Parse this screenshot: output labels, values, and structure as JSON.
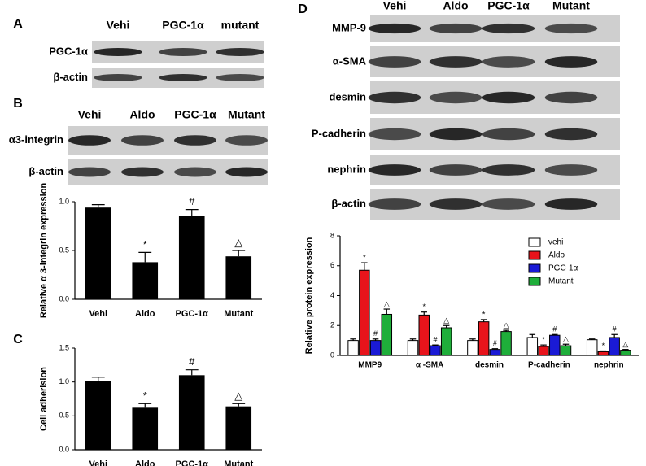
{
  "panels": {
    "A": {
      "label": "A",
      "lanes": [
        "Vehi",
        "PGC-1α",
        "mutant"
      ],
      "rows": [
        "PGC-1α",
        "β-actin"
      ]
    },
    "B": {
      "label": "B",
      "lanes": [
        "Vehi",
        "Aldo",
        "PGC-1α",
        "Mutant"
      ],
      "rows": [
        "α3-integrin",
        "β-actin"
      ]
    },
    "C": {
      "label": "C"
    },
    "D": {
      "label": "D",
      "lanes": [
        "Vehi",
        "Aldo",
        "PGC-1α",
        "Mutant"
      ],
      "rows": [
        "MMP-9",
        "α-SMA",
        "desmin",
        "P-cadherin",
        "nephrin",
        "β-actin"
      ]
    }
  },
  "chart_data": [
    {
      "type": "bar",
      "ylabel": "Relative α 3-integrin expression",
      "categories": [
        "Vehi",
        "Aldo",
        "PGC-1α",
        "Mutant"
      ],
      "values": [
        0.94,
        0.38,
        0.85,
        0.44
      ],
      "errors": [
        0.03,
        0.1,
        0.07,
        0.06
      ],
      "annotations": [
        null,
        "*",
        "#",
        "△"
      ],
      "color": "#000000",
      "ylim": [
        0,
        1.0
      ],
      "yticks": [
        {
          "value": 0,
          "label": "0.0"
        },
        {
          "value": 0.5,
          "label": "0.5"
        },
        {
          "value": 1.0,
          "label": "1.0"
        }
      ]
    },
    {
      "type": "bar",
      "ylabel": "Cell adherision",
      "categories": [
        "Vehi",
        "Aldo",
        "PGC-1α",
        "Mutant"
      ],
      "values": [
        1.02,
        0.62,
        1.1,
        0.64
      ],
      "errors": [
        0.05,
        0.06,
        0.08,
        0.04
      ],
      "annotations": [
        null,
        "*",
        "#",
        "△"
      ],
      "color": "#000000",
      "ylim": [
        0,
        1.5
      ],
      "yticks": [
        {
          "value": 0,
          "label": "0.0"
        },
        {
          "value": 0.5,
          "label": "0.5"
        },
        {
          "value": 1.0,
          "label": "1.0"
        },
        {
          "value": 1.5,
          "label": "1.5"
        }
      ]
    },
    {
      "type": "grouped-bar",
      "ylabel": "Relative protein expression",
      "categories": [
        "MMP9",
        "α -SMA",
        "desmin",
        "P-cadherin",
        "nephrin"
      ],
      "series": [
        {
          "name": "vehi",
          "color": "#ffffff",
          "values": [
            1.0,
            1.0,
            1.0,
            1.2,
            1.05
          ],
          "errors": [
            0.1,
            0.1,
            0.1,
            0.2,
            0.05
          ],
          "annotations": [
            null,
            null,
            null,
            null,
            null
          ]
        },
        {
          "name": "Aldo",
          "color": "#e8141b",
          "values": [
            5.7,
            2.7,
            2.25,
            0.6,
            0.25
          ],
          "errors": [
            0.5,
            0.2,
            0.15,
            0.1,
            0.05
          ],
          "annotations": [
            "*",
            "*",
            "*",
            "*",
            "*"
          ]
        },
        {
          "name": "PGC-1α",
          "color": "#1a1ad6",
          "values": [
            1.0,
            0.65,
            0.4,
            1.35,
            1.2
          ],
          "errors": [
            0.1,
            0.05,
            0.05,
            0.05,
            0.2
          ],
          "annotations": [
            "#",
            "#",
            "#",
            "#",
            "#"
          ]
        },
        {
          "name": "Mutant",
          "color": "#1fae3a",
          "values": [
            2.75,
            1.85,
            1.6,
            0.65,
            0.35
          ],
          "errors": [
            0.35,
            0.15,
            0.08,
            0.1,
            0.05
          ],
          "annotations": [
            "△",
            "△",
            "△",
            "△",
            "△"
          ]
        }
      ],
      "ylim": [
        0,
        8
      ],
      "yticks": [
        0,
        2,
        4,
        6,
        8
      ]
    }
  ]
}
